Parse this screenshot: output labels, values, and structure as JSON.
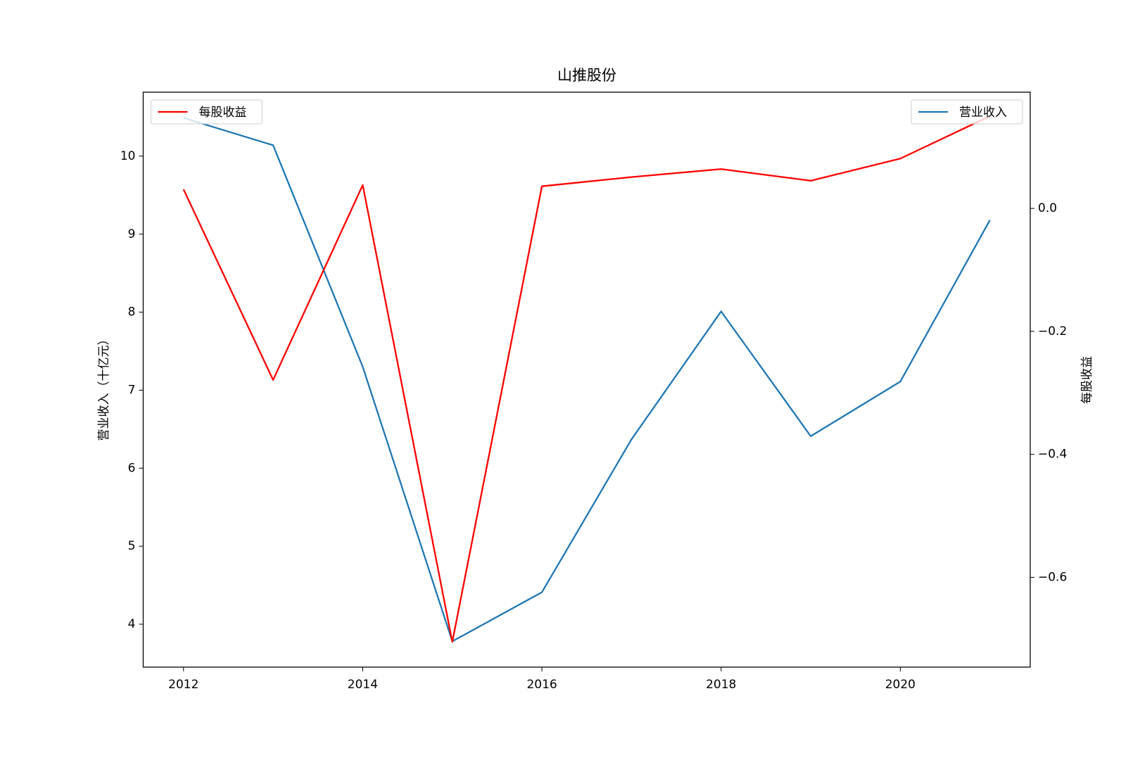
{
  "chart_data": {
    "type": "line",
    "title": "山推股份",
    "x": [
      2012,
      2013,
      2014,
      2015,
      2016,
      2017,
      2018,
      2019,
      2020,
      2021
    ],
    "xlim": [
      2011.55,
      2021.45
    ],
    "xticks": [
      2012,
      2014,
      2016,
      2018,
      2020
    ],
    "ylabel": "营业收入（十亿元）",
    "ylim": [
      3.45,
      10.82
    ],
    "yticks": [
      4,
      5,
      6,
      7,
      8,
      9,
      10
    ],
    "y2label": "每股收益",
    "y2lim": [
      -0.746,
      0.189
    ],
    "y2ticks": [
      {
        "value": 0,
        "label": "0.0"
      },
      {
        "value": -0.2,
        "label": "−0.2"
      },
      {
        "value": -0.4,
        "label": "−0.4"
      },
      {
        "value": -0.6,
        "label": "−0.6"
      }
    ],
    "series": [
      {
        "name": "营业收入",
        "color": "#1f77b4",
        "legend": "upper right",
        "values": [
          10.49,
          10.14,
          7.3,
          3.78,
          4.41,
          6.37,
          8.01,
          6.41,
          7.11,
          9.18
        ]
      },
      {
        "name": "每股收益",
        "color": "#ff0000",
        "axis": "y2",
        "legend": "upper left",
        "values": [
          0.031,
          -0.279,
          0.038,
          -0.705,
          0.036,
          0.051,
          0.064,
          0.045,
          0.081,
          0.15
        ]
      }
    ]
  }
}
